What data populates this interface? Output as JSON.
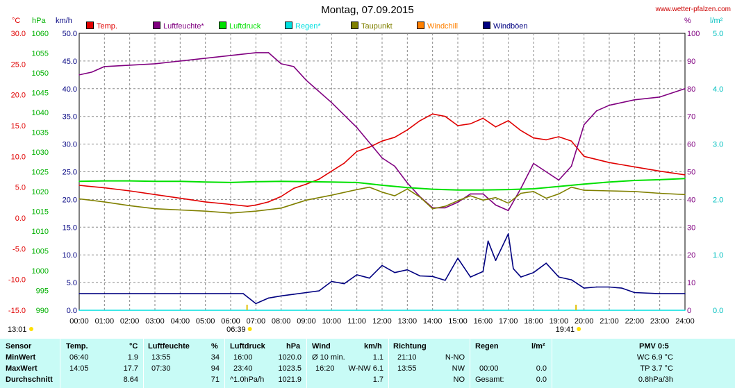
{
  "header": {
    "title": "Montag, 07.09.2015",
    "site": "www.wetter-pfalzen.com",
    "units": {
      "temp": "°C",
      "pressure": "hPa",
      "wind": "km/h",
      "humidity": "%",
      "rain": "l/m²"
    }
  },
  "legend": [
    {
      "label": "Temp.",
      "color": "#e00000"
    },
    {
      "label": "Luftfeuchte*",
      "color": "#800080"
    },
    {
      "label": "Luftdruck",
      "color": "#00e000"
    },
    {
      "label": "Regen*",
      "color": "#00e0e0"
    },
    {
      "label": "Taupunkt",
      "color": "#808000"
    },
    {
      "label": "Windchill",
      "color": "#ff8000"
    },
    {
      "label": "Windböen",
      "color": "#000080"
    }
  ],
  "markers": {
    "sunrise_left": "13:01",
    "sunrise": "06:39",
    "sunset": "19:41"
  },
  "chart_data": {
    "type": "line",
    "x_unit": "hours",
    "x_ticks": [
      "00:00",
      "01:00",
      "02:00",
      "03:00",
      "04:00",
      "05:00",
      "06:00",
      "07:00",
      "08:00",
      "09:00",
      "10:00",
      "11:00",
      "12:00",
      "13:00",
      "14:00",
      "15:00",
      "16:00",
      "17:00",
      "18:00",
      "19:00",
      "20:00",
      "21:00",
      "22:00",
      "23:00",
      "24:00"
    ],
    "axes": {
      "temp": {
        "unit": "°C",
        "range": [
          -15,
          30
        ],
        "ticks": [
          "30.0",
          "25.0",
          "20.0",
          "15.0",
          "10.0",
          "5.0",
          "0.0",
          "-5.0",
          "-10.0",
          "-15.0"
        ]
      },
      "pressure": {
        "unit": "hPa",
        "range": [
          990,
          1060
        ],
        "ticks": [
          "1060",
          "1055",
          "1050",
          "1045",
          "1040",
          "1035",
          "1030",
          "1025",
          "1020",
          "1015",
          "1010",
          "1005",
          "1000",
          "995",
          "990"
        ]
      },
      "wind": {
        "unit": "km/h",
        "range": [
          0,
          50
        ],
        "ticks": [
          "50.0",
          "45.0",
          "40.0",
          "35.0",
          "30.0",
          "25.0",
          "20.0",
          "15.0",
          "10.0",
          "5.0",
          "0.0"
        ]
      },
      "humidity": {
        "unit": "%",
        "range": [
          0,
          100
        ],
        "ticks": [
          "100",
          "90",
          "80",
          "70",
          "60",
          "50",
          "40",
          "30",
          "20",
          "10",
          "0"
        ]
      },
      "rain": {
        "unit": "l/m²",
        "range": [
          0,
          5
        ],
        "ticks": [
          "5.0",
          "4.0",
          "3.0",
          "2.0",
          "1.0",
          "0.0"
        ]
      }
    },
    "series": [
      {
        "name": "Temp.",
        "axis": "temp",
        "color": "#e00000",
        "x": [
          0,
          1,
          2,
          3,
          4,
          5,
          6,
          6.67,
          7,
          7.5,
          8,
          8.5,
          9,
          9.5,
          10,
          10.5,
          11,
          11.5,
          12,
          12.5,
          13,
          13.5,
          14,
          14.5,
          15,
          15.5,
          16,
          16.5,
          17,
          17.5,
          18,
          18.5,
          19,
          19.5,
          20,
          21,
          22,
          23,
          24
        ],
        "y": [
          5.3,
          4.9,
          4.4,
          3.8,
          3.2,
          2.6,
          2.2,
          1.9,
          2.1,
          2.6,
          3.5,
          4.8,
          5.5,
          6.3,
          7.6,
          8.9,
          10.8,
          11.5,
          12.5,
          13.1,
          14.3,
          15.8,
          16.9,
          16.5,
          15.0,
          15.3,
          16.2,
          14.8,
          15.8,
          14.2,
          13.0,
          12.7,
          13.2,
          12.5,
          10.0,
          9.0,
          8.3,
          7.6,
          7.0
        ]
      },
      {
        "name": "Luftfeuchte*",
        "axis": "humidity",
        "color": "#800080",
        "x": [
          0,
          0.5,
          1,
          2,
          3,
          4,
          5,
          6,
          7,
          7.5,
          8,
          8.5,
          9,
          10,
          11,
          12,
          12.5,
          13,
          13.5,
          14,
          14.5,
          15,
          15.5,
          16,
          16.5,
          17,
          17.5,
          18,
          18.5,
          19,
          19.5,
          20,
          20.5,
          21,
          22,
          23,
          24
        ],
        "y": [
          85,
          86,
          88,
          88.5,
          89,
          90,
          91,
          92,
          93,
          93,
          89,
          88,
          83,
          75,
          66,
          55,
          52,
          46,
          41,
          37,
          37,
          39,
          42,
          42,
          38,
          36,
          44,
          53,
          50,
          47,
          52,
          67,
          72,
          74,
          76,
          77,
          80
        ]
      },
      {
        "name": "Luftdruck",
        "axis": "pressure",
        "color": "#00e000",
        "x": [
          0,
          1,
          2,
          3,
          4,
          5,
          6,
          7,
          8,
          9,
          10,
          11,
          12,
          13,
          14,
          15,
          16,
          17,
          18,
          19,
          20,
          21,
          22,
          23,
          24
        ],
        "y": [
          1022.6,
          1022.7,
          1022.7,
          1022.6,
          1022.6,
          1022.4,
          1022.3,
          1022.5,
          1022.6,
          1022.5,
          1022.4,
          1022.3,
          1021.6,
          1021.0,
          1020.6,
          1020.4,
          1020.4,
          1020.5,
          1020.7,
          1021.3,
          1021.9,
          1022.4,
          1022.8,
          1023.0,
          1023.3
        ]
      },
      {
        "name": "Taupunkt",
        "axis": "temp",
        "color": "#808000",
        "x": [
          0,
          1,
          2,
          3,
          4,
          5,
          6,
          7,
          8,
          9,
          10,
          11,
          11.5,
          12,
          12.5,
          13,
          13.5,
          14,
          14.5,
          15,
          15.5,
          16,
          16.5,
          17,
          17.5,
          18,
          18.5,
          19,
          19.5,
          20,
          21,
          22,
          23,
          24
        ],
        "y": [
          3.1,
          2.6,
          2.0,
          1.5,
          1.3,
          1.1,
          0.8,
          1.1,
          1.6,
          2.9,
          3.7,
          4.6,
          5.0,
          4.2,
          3.6,
          4.7,
          3.4,
          1.5,
          1.9,
          2.8,
          3.6,
          2.9,
          3.3,
          2.4,
          4.0,
          4.3,
          3.2,
          3.9,
          5.0,
          4.5,
          4.4,
          4.3,
          4.0,
          3.8
        ]
      },
      {
        "name": "Windböen",
        "axis": "wind",
        "color": "#000080",
        "x": [
          0,
          1,
          2,
          3,
          4,
          5,
          6,
          6.5,
          7,
          7.5,
          8,
          8.5,
          9,
          9.5,
          10,
          10.5,
          11,
          11.5,
          12,
          12.5,
          13,
          13.5,
          14,
          14.5,
          15,
          15.5,
          16,
          16.2,
          16.5,
          17,
          17.2,
          17.5,
          18,
          18.5,
          19,
          19.5,
          20,
          20.5,
          21,
          21.5,
          22,
          23,
          24
        ],
        "y": [
          3,
          3,
          3,
          3,
          3,
          3,
          3,
          3,
          1.2,
          2.2,
          2.6,
          2.9,
          3.2,
          3.5,
          5.2,
          4.8,
          6.4,
          5.8,
          8.1,
          6.8,
          7.3,
          6.2,
          6.1,
          5.4,
          9.4,
          6.0,
          7.0,
          12.5,
          9.0,
          13.8,
          7.5,
          6.0,
          6.8,
          8.5,
          6.0,
          5.5,
          4.0,
          4.2,
          4.2,
          4.0,
          3.2,
          3.0,
          3.0
        ]
      },
      {
        "name": "Regen*",
        "axis": "rain",
        "color": "#00e0e0",
        "x": [
          0,
          24
        ],
        "y": [
          0,
          0
        ]
      }
    ]
  },
  "stats": {
    "headers": {
      "sensor": "Sensor",
      "temp": "Temp.",
      "temp_unit": "°C",
      "hum": "Luftfeuchte",
      "hum_unit": "%",
      "press": "Luftdruck",
      "press_unit": "hPa",
      "wind": "Wind",
      "wind_unit": "km/h",
      "dir": "Richtung",
      "rain": "Regen",
      "rain_unit": "l/m²",
      "pmv": "PMV 0:5"
    },
    "rows": [
      {
        "label": "MinWert",
        "temp_time": "06:40",
        "temp": "1.9",
        "hum_time": "13:55",
        "hum": "34",
        "press_time": "16:00",
        "press": "1020.0",
        "wind_time": "Ø 10 min.",
        "wind": "1.1",
        "dir_time": "21:10",
        "dir": "N-NO",
        "rain_time": "",
        "rain": "",
        "pmv": "WC 6.9 °C"
      },
      {
        "label": "MaxWert",
        "temp_time": "14:05",
        "temp": "17.7",
        "hum_time": "07:30",
        "hum": "94",
        "press_time": "23:40",
        "press": "1023.5",
        "wind_time": "16:20",
        "wind": "W-NW 6.1",
        "dir_time": "13:55",
        "dir": "NW",
        "rain_time": "00:00",
        "rain": "0.0",
        "pmv": "TP 3.7 °C"
      },
      {
        "label": "Durchschnitt",
        "temp_time": "",
        "temp": "8.64",
        "hum_time": "",
        "hum": "71",
        "press_time": "^1.0hPa/h",
        "press": "1021.9",
        "wind_time": "",
        "wind": "1.7",
        "dir_time": "",
        "dir": "NO",
        "rain_time": "Gesamt:",
        "rain": "0.0",
        "pmv": "0.8hPa/3h"
      }
    ]
  }
}
